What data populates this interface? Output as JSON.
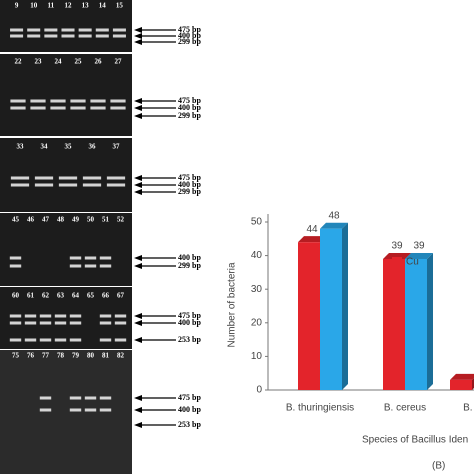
{
  "gel": {
    "panels": [
      {
        "lanes": [
          "9",
          "10",
          "11",
          "12",
          "13",
          "14",
          "15"
        ],
        "markers": [
          "475 bp",
          "400 bp",
          "299 bp"
        ]
      },
      {
        "lanes": [
          "22",
          "23",
          "24",
          "25",
          "26",
          "27"
        ],
        "markers": [
          "475 bp",
          "400 bp",
          "299 bp"
        ]
      },
      {
        "lanes": [
          "33",
          "34",
          "35",
          "36",
          "37"
        ],
        "markers": [
          "475 bp",
          "400 bp",
          "299 bp"
        ]
      },
      {
        "lanes": [
          "45",
          "46",
          "47",
          "48",
          "49",
          "50",
          "51",
          "52"
        ],
        "markers": [
          "400 bp",
          "299 bp"
        ]
      },
      {
        "lanes": [
          "60",
          "61",
          "62",
          "63",
          "64",
          "65",
          "66",
          "67"
        ],
        "markers": [
          "475 bp",
          "400 bp",
          "253 bp"
        ]
      },
      {
        "lanes": [
          "75",
          "76",
          "77",
          "78",
          "79",
          "80",
          "81",
          "82"
        ],
        "markers": [
          "475 bp",
          "400 bp",
          "253 bp"
        ]
      }
    ]
  },
  "chart_data": {
    "type": "bar3d",
    "x_label": "Species of Bacillus Iden",
    "y_label": "Number of bacteria",
    "panel_label": "(B)",
    "categories": [
      "B. thuringiensis",
      "B. cereus",
      "B. a"
    ],
    "series": [
      {
        "name": "Cu",
        "color": "#e3242b",
        "values": [
          44,
          39,
          3
        ]
      },
      {
        "color": "#2aa7e8",
        "values": [
          48,
          39,
          null
        ]
      }
    ],
    "value_labels_shown": [
      [
        true,
        true,
        false
      ],
      [
        true,
        true,
        false
      ]
    ],
    "ylim": [
      0,
      50
    ],
    "yticks": [
      0,
      10,
      20,
      30,
      40,
      50
    ]
  }
}
